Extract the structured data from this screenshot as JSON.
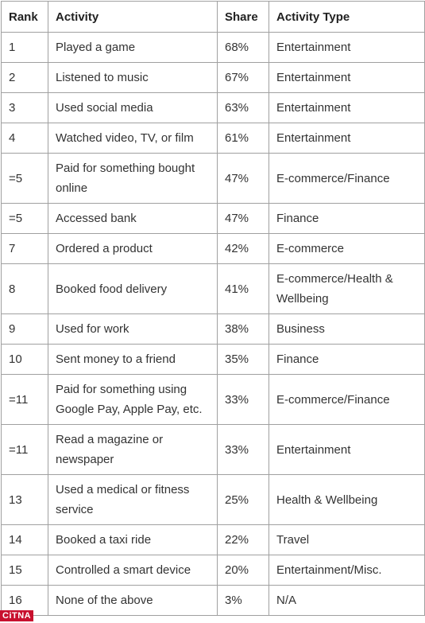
{
  "table": {
    "headers": [
      "Rank",
      "Activity",
      "Share",
      "Activity Type"
    ],
    "rows": [
      [
        "1",
        "Played a game",
        "68%",
        "Entertainment"
      ],
      [
        "2",
        "Listened to music",
        "67%",
        "Entertainment"
      ],
      [
        "3",
        "Used social media",
        "63%",
        "Entertainment"
      ],
      [
        "4",
        "Watched video, TV, or film",
        "61%",
        "Entertainment"
      ],
      [
        "=5",
        "Paid for something bought online",
        "47%",
        "E-commerce/Finance"
      ],
      [
        "=5",
        "Accessed bank",
        "47%",
        "Finance"
      ],
      [
        "7",
        "Ordered a product",
        "42%",
        "E-commerce"
      ],
      [
        "8",
        "Booked food delivery",
        "41%",
        "E-commerce/Health & Wellbeing"
      ],
      [
        "9",
        "Used for work",
        "38%",
        "Business"
      ],
      [
        "10",
        "Sent money to a friend",
        "35%",
        "Finance"
      ],
      [
        "=11",
        "Paid for something using Google Pay, Apple Pay, etc.",
        "33%",
        "E-commerce/Finance"
      ],
      [
        "=11",
        "Read a magazine or newspaper",
        "33%",
        "Entertainment"
      ],
      [
        "13",
        "Used a medical or fitness service",
        "25%",
        "Health & Wellbeing"
      ],
      [
        "14",
        "Booked a taxi ride",
        "22%",
        "Travel"
      ],
      [
        "15",
        "Controlled a smart device",
        "20%",
        "Entertainment/Misc."
      ],
      [
        "16",
        "None of the above",
        "3%",
        "N/A"
      ]
    ]
  },
  "watermark": "CiTNA"
}
